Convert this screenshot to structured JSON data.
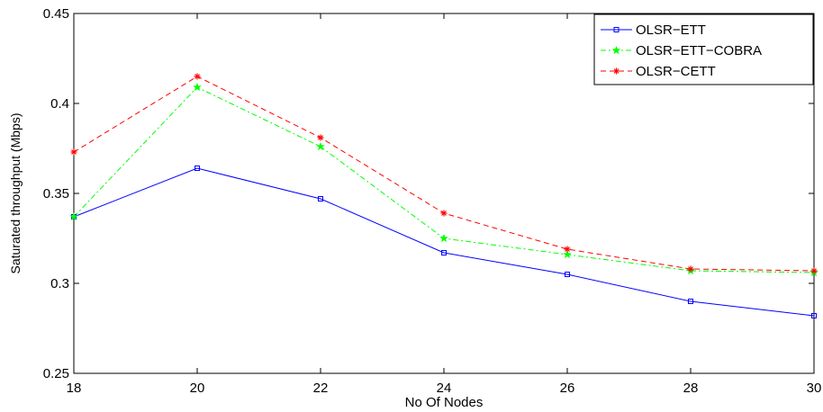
{
  "chart_data": {
    "type": "line",
    "title": "",
    "xlabel": "No Of Nodes",
    "ylabel": "Saturated throughput (Mbps)",
    "x": [
      18,
      20,
      22,
      24,
      26,
      28,
      30
    ],
    "xlim": [
      18,
      30
    ],
    "ylim": [
      0.25,
      0.45
    ],
    "xticks": [
      18,
      20,
      22,
      24,
      26,
      28,
      30
    ],
    "yticks": [
      0.25,
      0.3,
      0.35,
      0.4,
      0.45
    ],
    "ytick_labels": [
      "0.25",
      "0.3",
      "0.35",
      "0.4",
      "0.45"
    ],
    "grid": false,
    "legend_position": "top-right",
    "series": [
      {
        "name": "OLSR−ETT",
        "color": "#0000ff",
        "dash": "solid",
        "marker": "square",
        "values": [
          0.337,
          0.364,
          0.347,
          0.317,
          0.305,
          0.29,
          0.282
        ]
      },
      {
        "name": "OLSR−ETT−COBRA",
        "color": "#00ff00",
        "dash": "dashdot",
        "marker": "star",
        "values": [
          0.337,
          0.409,
          0.376,
          0.325,
          0.316,
          0.307,
          0.306
        ]
      },
      {
        "name": "OLSR−CETT",
        "color": "#ff0000",
        "dash": "dashed",
        "marker": "asterisk",
        "values": [
          0.373,
          0.415,
          0.381,
          0.339,
          0.319,
          0.308,
          0.307
        ]
      }
    ]
  }
}
